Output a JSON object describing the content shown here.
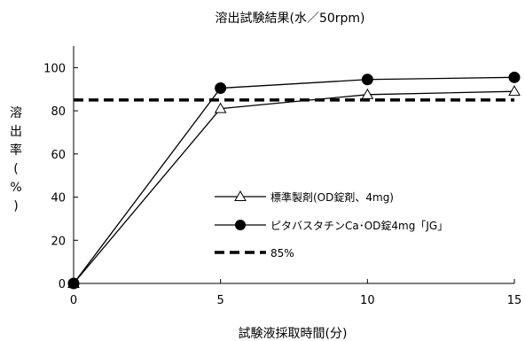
{
  "chart_data": {
    "type": "line",
    "title": "溶出試験結果(水／50rpm)",
    "xlabel": "試験液採取時間(分)",
    "ylabel_chars": [
      "溶",
      "出",
      "率",
      "(",
      "%",
      ")"
    ],
    "x": [
      0,
      5,
      10,
      15
    ],
    "x_ticks": [
      0,
      5,
      10,
      15
    ],
    "y_ticks": [
      0,
      20,
      40,
      60,
      80,
      100
    ],
    "xlim": [
      0,
      15
    ],
    "ylim": [
      0,
      110
    ],
    "grid": false,
    "legend_position": "center-right",
    "series": [
      {
        "name": "標準製剤(OD錠剤、4mg)",
        "values": [
          0,
          81,
          87.5,
          89
        ],
        "marker": "open-triangle",
        "line_style": "solid",
        "color": "#000000"
      },
      {
        "name": "ピタバスタチンCa･OD錠4mg「JG」",
        "values": [
          0,
          90.5,
          94.5,
          95.5
        ],
        "marker": "filled-circle",
        "line_style": "solid",
        "color": "#000000"
      },
      {
        "name": "85%",
        "values": [
          85,
          85,
          85,
          85
        ],
        "marker": "none",
        "line_style": "dashed",
        "color": "#000000"
      }
    ]
  }
}
